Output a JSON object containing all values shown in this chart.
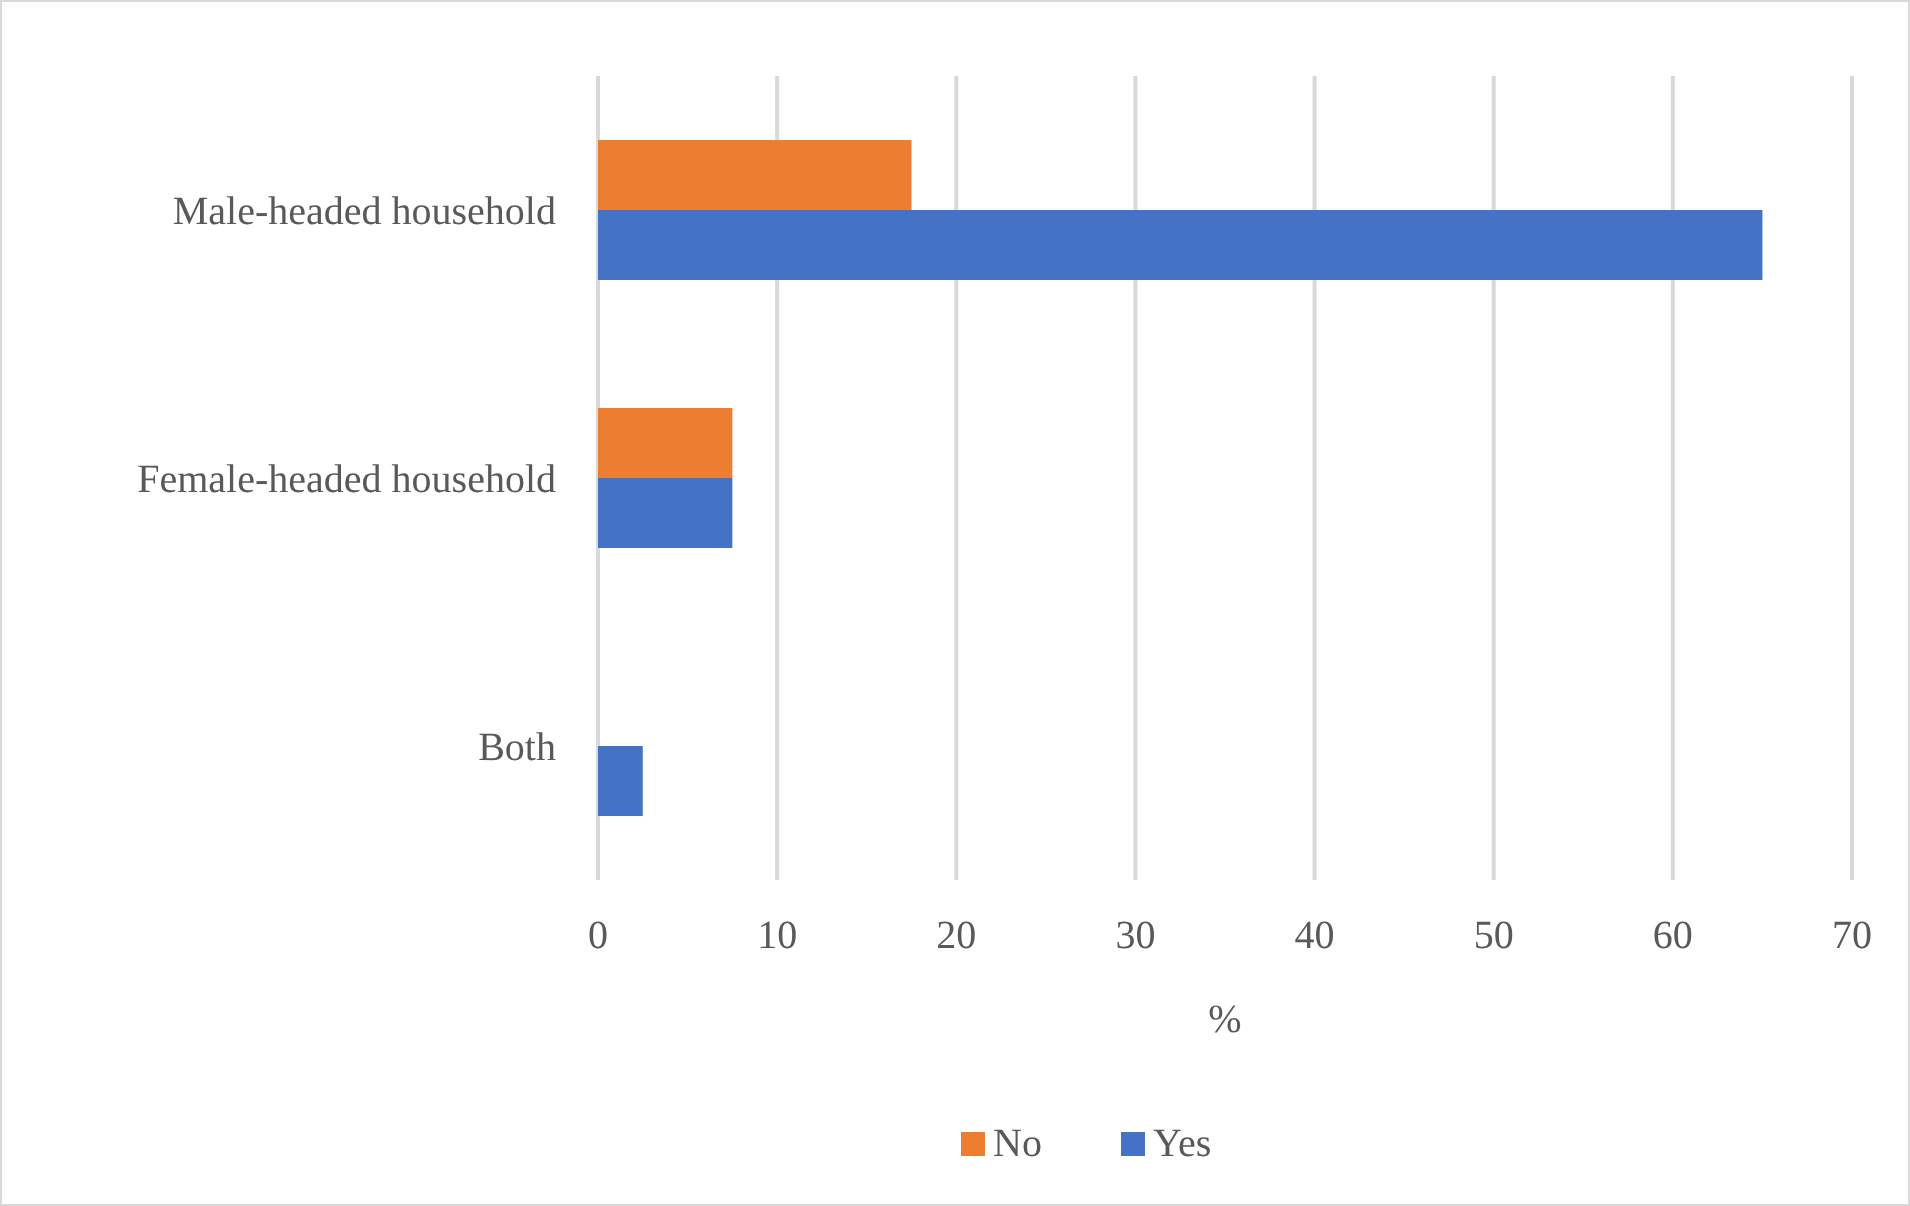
{
  "chart_data": {
    "type": "bar",
    "orientation": "horizontal",
    "xlabel": "%",
    "categories": [
      "Male-headed household",
      "Female-headed household",
      "Both"
    ],
    "series": [
      {
        "name": "No",
        "color": "#ed7d31",
        "values": [
          17.5,
          7.5,
          null
        ]
      },
      {
        "name": "Yes",
        "color": "#4472c4",
        "values": [
          65,
          7.5,
          2.5
        ]
      }
    ],
    "xlim": [
      0,
      70
    ],
    "xticks": [
      0,
      10,
      20,
      30,
      40,
      50,
      60,
      70
    ],
    "grid": "x",
    "legend": "bottom"
  }
}
